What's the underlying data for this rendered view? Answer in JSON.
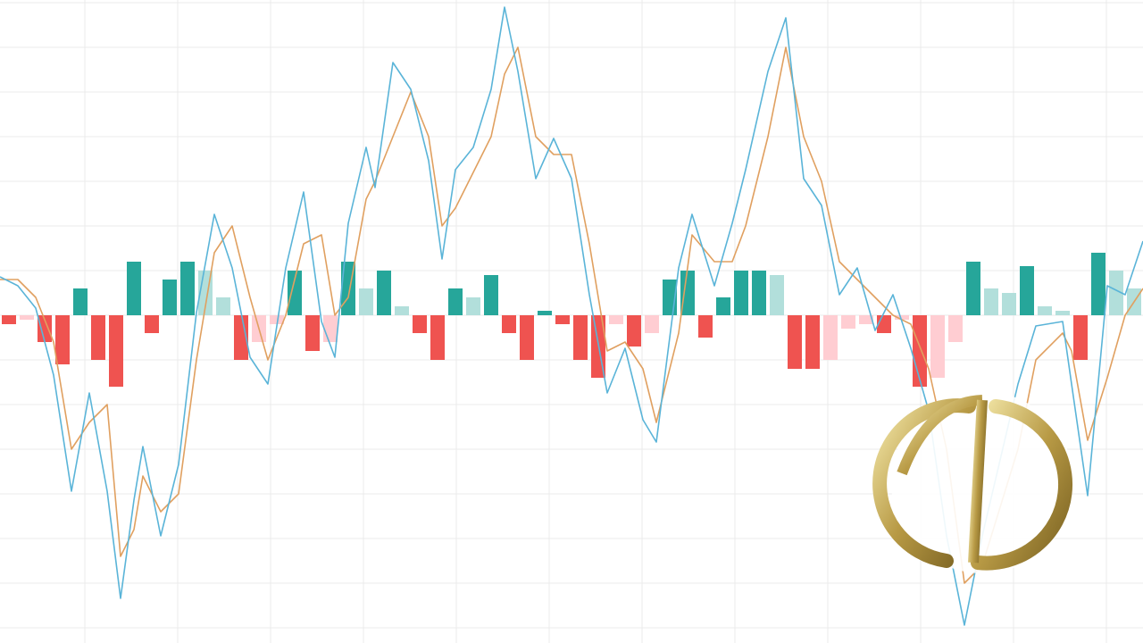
{
  "chart_data": {
    "type": "macd",
    "xlim": [
      0,
      128
    ],
    "ylim": [
      -36.7,
      35.3
    ],
    "grid": true,
    "series": [
      {
        "name": "MACD",
        "color": "#5ab4d8",
        "x": [
          0,
          2,
          4,
          6,
          8,
          10,
          12,
          13.5,
          15,
          16,
          18,
          20,
          22,
          24,
          26,
          28,
          30,
          32,
          34,
          36,
          37.5,
          39,
          41,
          42,
          44,
          46,
          48,
          49.5,
          51,
          53,
          55,
          56.5,
          58,
          60,
          62,
          64,
          66,
          68,
          70,
          72,
          73.5,
          76,
          77.5,
          80,
          82,
          83.5,
          86,
          88,
          90,
          92,
          94,
          96,
          98,
          100,
          102,
          104,
          106,
          108,
          110,
          114,
          116,
          119,
          120,
          121.8,
          124,
          126,
          128
        ],
        "values": [
          4.3,
          3.3,
          0.8,
          -6.7,
          -19.7,
          -8.7,
          -19.7,
          -31.7,
          -20.7,
          -14.7,
          -24.7,
          -16.7,
          0.3,
          11.3,
          5.3,
          -4.7,
          -7.7,
          5.3,
          13.8,
          -0.7,
          -4.7,
          10.3,
          18.8,
          14.3,
          28.3,
          25.3,
          17.3,
          6.3,
          16.3,
          18.8,
          25.3,
          34.5,
          27.3,
          15.3,
          19.8,
          15.3,
          2.3,
          -8.7,
          -3.7,
          -11.7,
          -14.2,
          5.3,
          11.3,
          3.3,
          10.3,
          16.3,
          27.3,
          33.3,
          15.3,
          12.3,
          2.3,
          5.3,
          -1.7,
          2.3,
          -3.7,
          -10.7,
          -24.7,
          -34.7,
          -24.7,
          -7.7,
          -1.2,
          -0.7,
          -7.7,
          -20.2,
          3.3,
          2.3,
          8.3
        ]
      },
      {
        "name": "Signal",
        "color": "#e0a060",
        "x": [
          0,
          2,
          4,
          6,
          8,
          10,
          12,
          13.5,
          15,
          16,
          18,
          20,
          22,
          24,
          26,
          28,
          30,
          32,
          34,
          36,
          37.5,
          39,
          41,
          42,
          44,
          46,
          48,
          49.5,
          51,
          53,
          55,
          56.5,
          58,
          60,
          62,
          64,
          66,
          68,
          70,
          72,
          73.5,
          76,
          77.5,
          80,
          82,
          83.5,
          86,
          88,
          90,
          92,
          94,
          96,
          98,
          100,
          102,
          104,
          106,
          108,
          110,
          114,
          116,
          119,
          120,
          121.8,
          124,
          126,
          128
        ],
        "values": [
          4,
          4,
          2,
          -3,
          -15,
          -12,
          -10,
          -27,
          -24,
          -18,
          -22,
          -20,
          -5,
          7,
          10,
          2,
          -5,
          0,
          8,
          9,
          0,
          2,
          13,
          15,
          20,
          25,
          20,
          10,
          12,
          16,
          20,
          27,
          30,
          20,
          18,
          18,
          8,
          -4,
          -3,
          -6,
          -12,
          -2,
          9,
          6,
          6,
          10,
          20,
          30,
          20,
          15,
          6,
          4,
          2,
          0,
          -1,
          -6,
          -15,
          -30,
          -28,
          -15,
          -5,
          -2,
          -4,
          -14,
          -7,
          0,
          3
        ]
      }
    ],
    "histogram": {
      "colors": [
        "#26a69a",
        "#b2dfdb",
        "#ef5350",
        "#ffcdd2"
      ],
      "x": [
        1,
        3,
        5,
        7,
        9,
        11,
        13,
        15,
        17,
        19,
        21,
        23,
        25,
        27,
        29,
        31,
        33,
        35,
        37,
        39,
        41,
        43,
        45,
        47,
        49,
        51,
        53,
        55,
        57,
        59,
        61,
        63,
        65,
        67,
        69,
        71,
        73,
        75,
        77,
        79,
        81,
        83,
        85,
        87,
        89,
        91,
        93,
        95,
        97,
        99,
        101,
        103,
        105,
        107,
        109,
        111,
        113,
        115,
        117,
        119,
        121,
        123,
        125,
        127
      ],
      "values": [
        -1,
        -0.5,
        -3,
        -5.5,
        3,
        -5,
        -8,
        6,
        -2,
        4,
        6,
        5,
        2,
        -5,
        -3,
        -1,
        5,
        -4,
        -3,
        6,
        3,
        5,
        1,
        -2,
        -5,
        3,
        2,
        4.5,
        -2,
        -5,
        0.5,
        -1,
        -5,
        -7,
        -1,
        -3.5,
        -2,
        4,
        5,
        -2.5,
        2,
        5,
        5,
        4.5,
        -6,
        -6,
        -5,
        -1.5,
        -1,
        -2,
        -0.5,
        -8,
        -7,
        -3,
        6,
        3,
        2.5,
        5.5,
        1,
        0.5,
        -5,
        7,
        5,
        3
      ]
    }
  }
}
